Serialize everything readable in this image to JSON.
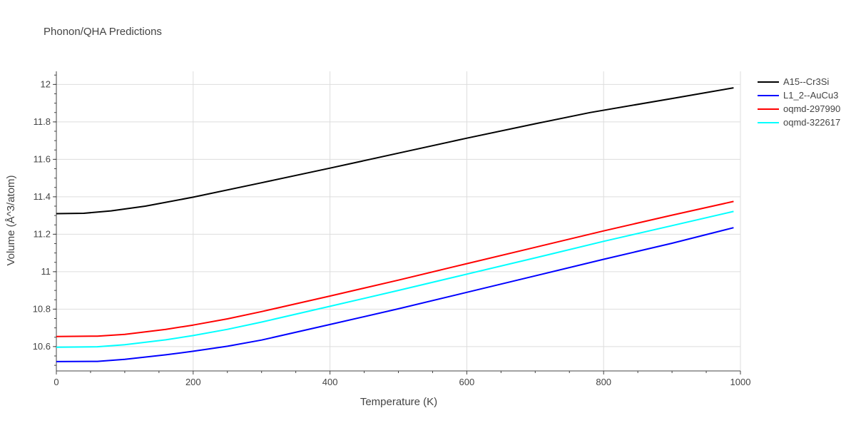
{
  "chart_data": {
    "type": "line",
    "title": "Phonon/QHA Predictions",
    "xlabel": "Temperature (K)",
    "ylabel": "Volume (Å^3/atom)",
    "xlim": [
      0,
      1000
    ],
    "ylim": [
      10.47,
      12.07
    ],
    "xticks": [
      0,
      200,
      400,
      600,
      800,
      1000
    ],
    "xtick_labels": [
      "0",
      "200",
      "400",
      "600",
      "800",
      "1000"
    ],
    "yticks": [
      10.6,
      10.8,
      11,
      11.2,
      11.4,
      11.6,
      11.8,
      12
    ],
    "ytick_labels": [
      "10.6",
      "10.8",
      "11",
      "11.2",
      "11.4",
      "11.6",
      "11.8",
      "12"
    ],
    "grid": true,
    "legend_position": "top-right",
    "series": [
      {
        "name": "A15--Cr3Si",
        "color": "#000000",
        "x": [
          0,
          40,
          80,
          130,
          200,
          300,
          400,
          500,
          600,
          700,
          780,
          900,
          990
        ],
        "y": [
          11.31,
          11.312,
          11.325,
          11.35,
          11.398,
          11.475,
          11.553,
          11.633,
          11.713,
          11.79,
          11.85,
          11.925,
          11.982
        ]
      },
      {
        "name": "L1_2--AuCu3",
        "color": "#0000ff",
        "x": [
          0,
          60,
          100,
          160,
          200,
          250,
          300,
          400,
          500,
          600,
          700,
          800,
          900,
          990
        ],
        "y": [
          10.52,
          10.521,
          10.532,
          10.556,
          10.575,
          10.602,
          10.635,
          10.718,
          10.802,
          10.89,
          10.978,
          11.066,
          11.152,
          11.235
        ]
      },
      {
        "name": "oqmd-297990",
        "color": "#ff0000",
        "x": [
          0,
          60,
          100,
          160,
          200,
          250,
          300,
          400,
          500,
          600,
          700,
          800,
          900,
          990
        ],
        "y": [
          10.654,
          10.656,
          10.665,
          10.692,
          10.715,
          10.748,
          10.787,
          10.87,
          10.955,
          11.043,
          11.13,
          11.218,
          11.302,
          11.375
        ]
      },
      {
        "name": "oqmd-322617",
        "color": "#00ffff",
        "x": [
          0,
          60,
          100,
          160,
          200,
          250,
          300,
          400,
          500,
          600,
          700,
          800,
          900,
          990
        ],
        "y": [
          10.597,
          10.599,
          10.61,
          10.636,
          10.659,
          10.692,
          10.731,
          10.815,
          10.9,
          10.987,
          11.074,
          11.162,
          11.246,
          11.322
        ]
      }
    ]
  }
}
